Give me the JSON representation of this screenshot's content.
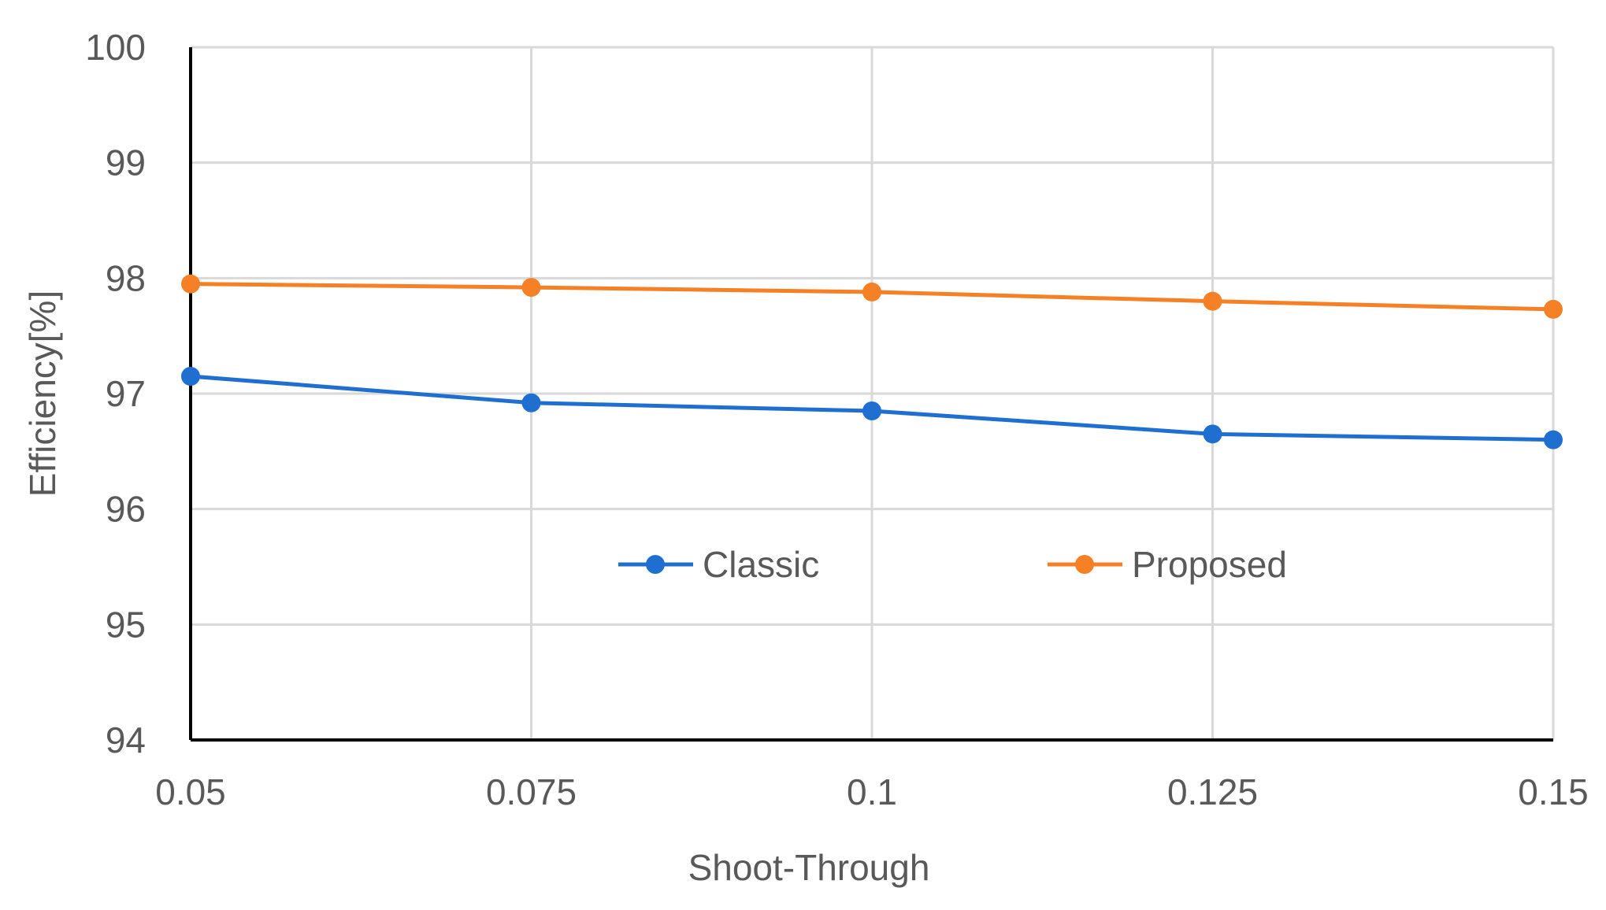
{
  "chart_data": {
    "type": "line",
    "title": "",
    "xlabel": "Shoot-Through",
    "ylabel": "Efficiency[%]",
    "x": [
      0.05,
      0.075,
      0.1,
      0.125,
      0.15
    ],
    "x_tick_labels": [
      "0.05",
      "0.075",
      "0.1",
      "0.125",
      "0.15"
    ],
    "y_tick_labels": [
      "94",
      "95",
      "96",
      "97",
      "98",
      "99",
      "100"
    ],
    "xlim": [
      0.05,
      0.15
    ],
    "ylim": [
      94,
      100
    ],
    "grid": true,
    "legend_position": "center",
    "series": [
      {
        "name": "Classic",
        "color": "#1f6fd1",
        "values": [
          97.15,
          96.92,
          96.85,
          96.65,
          96.6
        ]
      },
      {
        "name": "Proposed",
        "color": "#f58025",
        "values": [
          97.95,
          97.92,
          97.88,
          97.8,
          97.73
        ]
      }
    ]
  }
}
